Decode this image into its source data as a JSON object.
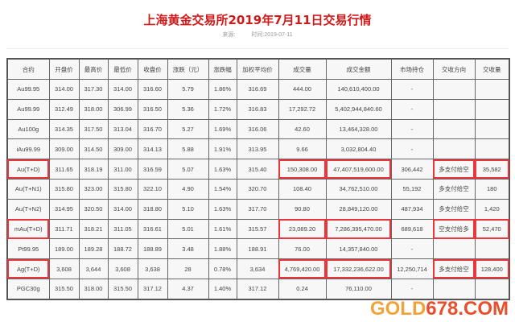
{
  "title": "上海黄金交易所2019年7月11日交易行情",
  "source_label": "来源:",
  "time_label": "时间:2019-07-11",
  "headers": [
    "合约",
    "开盘价",
    "最高价",
    "最低价",
    "收盘价",
    "涨跌（元）",
    "涨跌幅",
    "加权平均价",
    "成交量",
    "成交金额",
    "市场持仓",
    "交收方向",
    "交收量"
  ],
  "rows": [
    [
      "Au99.95",
      "314.00",
      "317.30",
      "314.00",
      "316.60",
      "5.79",
      "1.86%",
      "316.69",
      "444.00",
      "140,610,400.00",
      "-",
      "",
      ""
    ],
    [
      "Au99.99",
      "312.49",
      "318.00",
      "306.99",
      "316.50",
      "5.36",
      "1.72%",
      "316.83",
      "17,292.72",
      "5,402,944,840.60",
      "-",
      "",
      ""
    ],
    [
      "Au100g",
      "314.35",
      "317.50",
      "313.04",
      "316.70",
      "5.27",
      "1.69%",
      "316.06",
      "42.60",
      "13,464,328.00",
      "-",
      "",
      ""
    ],
    [
      "iAu99.99",
      "309.00",
      "314.50",
      "309.00",
      "314.13",
      "5.88",
      "1.91%",
      "313.95",
      "9.66",
      "3,032,804.40",
      "-",
      "",
      ""
    ],
    [
      "Au(T+D)",
      "311.65",
      "318.19",
      "311.00",
      "316.59",
      "5.07",
      "1.63%",
      "315.40",
      "150,308.00",
      "47,407,519,600.00",
      "306,442",
      "多支付给空",
      "35,582"
    ],
    [
      "Au(T+N1)",
      "315.80",
      "323.00",
      "315.80",
      "322.10",
      "4.90",
      "1.54%",
      "320.70",
      "108.40",
      "34,762,510.00",
      "55,192",
      "多支付给空",
      "180"
    ],
    [
      "Au(T+N2)",
      "314.95",
      "320.50",
      "314.00",
      "318.80",
      "5.10",
      "1.63%",
      "317.70",
      "90.80",
      "28,849,120.00",
      "487,934",
      "多支付给空",
      "1,420"
    ],
    [
      "mAu(T+D)",
      "311.71",
      "318.21",
      "311.05",
      "316.61",
      "5.01",
      "1.61%",
      "315.57",
      "23,089.20",
      "7,286,395,470.00",
      "689,618",
      "空支付给多",
      "52,470"
    ],
    [
      "Pt99.95",
      "189.00",
      "189.28",
      "188.72",
      "188.89",
      "3.48",
      "1.88%",
      "188.91",
      "76.00",
      "14,357,840.00",
      "-",
      "",
      ""
    ],
    [
      "Ag(T+D)",
      "3,608",
      "3,644",
      "3,608",
      "3,638",
      "28",
      "0.78%",
      "3,634",
      "4,769,420.00",
      "17,332,236,622.00",
      "12,250,714",
      "多支付给空",
      "128,400"
    ],
    [
      "PGC30g",
      "315.50",
      "318.00",
      "315.50",
      "317.12",
      "4.37",
      "1.40%",
      "317.12",
      "0.24",
      "76,110.00",
      "-",
      "",
      ""
    ]
  ],
  "highlighted_rows": [
    4,
    7,
    9
  ],
  "watermark": {
    "part1": "GOLD",
    "part2": "678.COM"
  },
  "colors": {
    "title": "#d01a1a",
    "highlight": "#e8363b"
  }
}
